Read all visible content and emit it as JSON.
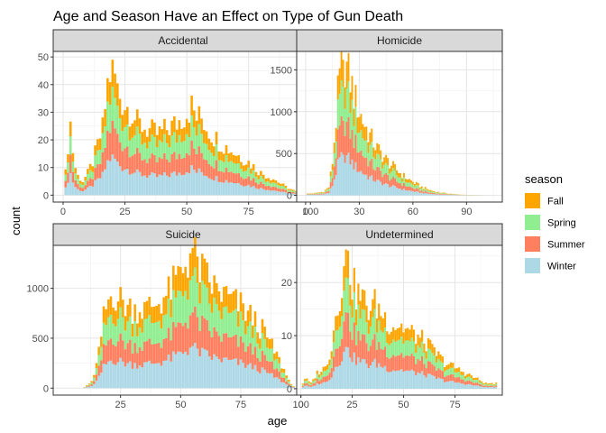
{
  "chart_data": {
    "type": "bar",
    "stacked": true,
    "title": "Age and Season Have an Effect on Type of Gun Death",
    "xlabel": "age",
    "ylabel": "count",
    "grid": true,
    "legend_placement": "right",
    "legend": {
      "title": "season",
      "entries": [
        {
          "name": "Fall",
          "color": "#FFA500"
        },
        {
          "name": "Spring",
          "color": "#90EE90"
        },
        {
          "name": "Summer",
          "color": "#FF7F5F"
        },
        {
          "name": "Winter",
          "color": "#ADD8E6"
        }
      ]
    },
    "stack_order_bottom_to_top": [
      "Winter",
      "Summer",
      "Spring",
      "Fall"
    ],
    "panels": [
      {
        "name": "Accidental",
        "xlim": [
          -4,
          101
        ],
        "ylim": [
          -2.5,
          52
        ],
        "x_ticks": [
          0,
          25,
          50,
          75,
          100
        ],
        "y_ticks": [
          0,
          10,
          20,
          30,
          40,
          50
        ],
        "age_range": [
          1,
          95
        ],
        "profile": [
          [
            0,
            0
          ],
          [
            1,
            8
          ],
          [
            2,
            18
          ],
          [
            3,
            26
          ],
          [
            4,
            16
          ],
          [
            5,
            10
          ],
          [
            6,
            7
          ],
          [
            8,
            5
          ],
          [
            10,
            8
          ],
          [
            12,
            12
          ],
          [
            14,
            18
          ],
          [
            16,
            24
          ],
          [
            18,
            40
          ],
          [
            19,
            44
          ],
          [
            20,
            48
          ],
          [
            22,
            38
          ],
          [
            24,
            34
          ],
          [
            26,
            32
          ],
          [
            28,
            30
          ],
          [
            30,
            26
          ],
          [
            34,
            24
          ],
          [
            38,
            22
          ],
          [
            42,
            24
          ],
          [
            46,
            26
          ],
          [
            50,
            30
          ],
          [
            52,
            32
          ],
          [
            54,
            28
          ],
          [
            56,
            28
          ],
          [
            60,
            22
          ],
          [
            65,
            18
          ],
          [
            70,
            15
          ],
          [
            75,
            12
          ],
          [
            80,
            8
          ],
          [
            85,
            6
          ],
          [
            90,
            3
          ],
          [
            95,
            1
          ]
        ],
        "fractions": [
          0.3,
          0.25,
          0.25,
          0.2
        ],
        "peak_age": 20,
        "peak_value": 49
      },
      {
        "name": "Homicide",
        "xlim": [
          -5,
          110
        ],
        "ylim": [
          -80,
          1720
        ],
        "x_ticks": [
          0,
          30,
          60,
          90
        ],
        "y_ticks": [
          0,
          500,
          1000,
          1500
        ],
        "age_range": [
          1,
          100
        ],
        "profile": [
          [
            0,
            20
          ],
          [
            5,
            25
          ],
          [
            10,
            45
          ],
          [
            13,
            100
          ],
          [
            15,
            400
          ],
          [
            17,
            900
          ],
          [
            18,
            1200
          ],
          [
            19,
            1400
          ],
          [
            20,
            1500
          ],
          [
            21,
            1620
          ],
          [
            22,
            1580
          ],
          [
            23,
            1520
          ],
          [
            25,
            1380
          ],
          [
            27,
            1200
          ],
          [
            30,
            1000
          ],
          [
            35,
            750
          ],
          [
            40,
            560
          ],
          [
            45,
            430
          ],
          [
            50,
            320
          ],
          [
            55,
            230
          ],
          [
            60,
            160
          ],
          [
            65,
            100
          ],
          [
            70,
            60
          ],
          [
            75,
            35
          ],
          [
            80,
            22
          ],
          [
            85,
            12
          ],
          [
            90,
            6
          ],
          [
            95,
            3
          ],
          [
            100,
            1
          ]
        ],
        "fractions": [
          0.3,
          0.25,
          0.25,
          0.2
        ],
        "peak_age": 21,
        "peak_value": 1620
      },
      {
        "name": "Suicide",
        "xlim": [
          -3,
          105
        ],
        "ylim": [
          -70,
          1430
        ],
        "x_ticks": [
          25,
          50,
          75,
          100
        ],
        "y_ticks": [
          0,
          500,
          1000
        ],
        "age_range": [
          10,
          97
        ],
        "profile": [
          [
            10,
            10
          ],
          [
            12,
            40
          ],
          [
            14,
            120
          ],
          [
            16,
            350
          ],
          [
            18,
            700
          ],
          [
            20,
            880
          ],
          [
            22,
            960
          ],
          [
            24,
            900
          ],
          [
            26,
            860
          ],
          [
            28,
            820
          ],
          [
            30,
            800
          ],
          [
            35,
            790
          ],
          [
            40,
            850
          ],
          [
            45,
            950
          ],
          [
            50,
            1150
          ],
          [
            52,
            1250
          ],
          [
            54,
            1350
          ],
          [
            56,
            1300
          ],
          [
            58,
            1200
          ],
          [
            60,
            1120
          ],
          [
            65,
            980
          ],
          [
            70,
            900
          ],
          [
            75,
            820
          ],
          [
            80,
            700
          ],
          [
            85,
            550
          ],
          [
            90,
            330
          ],
          [
            93,
            180
          ],
          [
            95,
            80
          ],
          [
            97,
            20
          ]
        ],
        "fractions": [
          0.3,
          0.24,
          0.26,
          0.2
        ],
        "peak_age": 54,
        "peak_value": 1350
      },
      {
        "name": "Undetermined",
        "xlim": [
          -2,
          98
        ],
        "ylim": [
          -1.2,
          27
        ],
        "x_ticks": [
          0,
          25,
          50,
          75,
          100
        ],
        "y_ticks": [
          0,
          10,
          20
        ],
        "age_range": [
          1,
          95
        ],
        "profile": [
          [
            0,
            0
          ],
          [
            2,
            2
          ],
          [
            5,
            1
          ],
          [
            8,
            3
          ],
          [
            12,
            4
          ],
          [
            15,
            8
          ],
          [
            17,
            14
          ],
          [
            19,
            18
          ],
          [
            21,
            22
          ],
          [
            23,
            25
          ],
          [
            25,
            20
          ],
          [
            27,
            18
          ],
          [
            30,
            17
          ],
          [
            33,
            15
          ],
          [
            36,
            16
          ],
          [
            40,
            14
          ],
          [
            44,
            12
          ],
          [
            48,
            12
          ],
          [
            52,
            11
          ],
          [
            56,
            10
          ],
          [
            60,
            9
          ],
          [
            65,
            7
          ],
          [
            70,
            5
          ],
          [
            75,
            4
          ],
          [
            80,
            3
          ],
          [
            85,
            2
          ],
          [
            90,
            1
          ],
          [
            95,
            1
          ]
        ],
        "fractions": [
          0.3,
          0.25,
          0.25,
          0.2
        ],
        "peak_age": 23,
        "peak_value": 26
      }
    ]
  }
}
